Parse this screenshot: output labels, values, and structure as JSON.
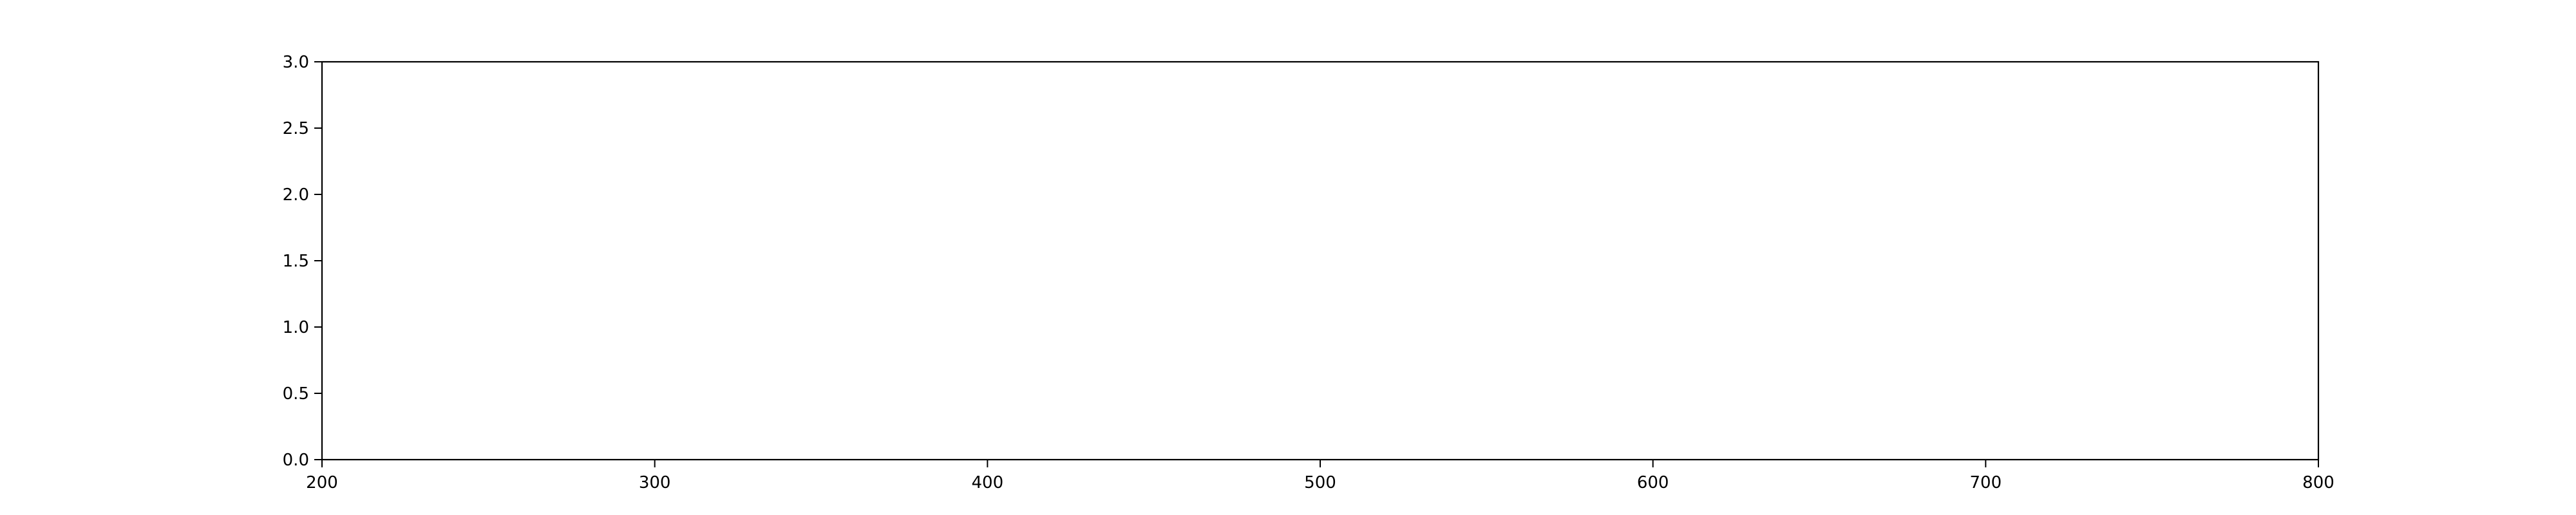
{
  "chart_data": {
    "type": "line",
    "title": "",
    "xlabel": "",
    "ylabel": "",
    "xlim": [
      200,
      800
    ],
    "ylim": [
      0,
      3.0
    ],
    "x_ticks": [
      200,
      300,
      400,
      500,
      600,
      700,
      800
    ],
    "x_tick_labels": [
      "200",
      "300",
      "400",
      "500",
      "600",
      "700",
      "800"
    ],
    "y_ticks": [
      0,
      0.5,
      1.0,
      1.5,
      2.0,
      2.5,
      3.0
    ],
    "y_tick_labels": [
      "0.0",
      "0.5",
      "1.0",
      "1.5",
      "2.0",
      "2.5",
      "3.0"
    ],
    "grid": false,
    "series": [],
    "colors": {
      "axes": "#000000",
      "background": "#ffffff"
    }
  }
}
